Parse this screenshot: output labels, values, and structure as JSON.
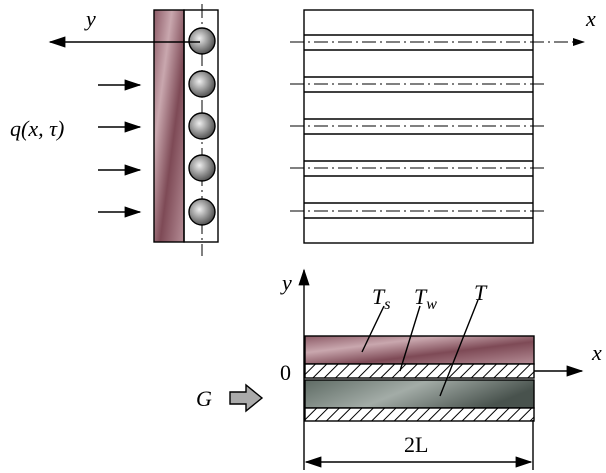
{
  "top_left": {
    "axis_label": "y",
    "heat_flux_label": "q(x, τ)"
  },
  "top_right": {
    "axis_label": "x"
  },
  "bottom": {
    "y_axis_label": "y",
    "x_axis_label": "x",
    "origin_label": "0",
    "flow_label": "G",
    "length_label": "2L",
    "layer_labels": [
      {
        "base": "T",
        "sub": "s"
      },
      {
        "base": "T",
        "sub": "w"
      },
      {
        "base": "T"
      }
    ]
  }
}
